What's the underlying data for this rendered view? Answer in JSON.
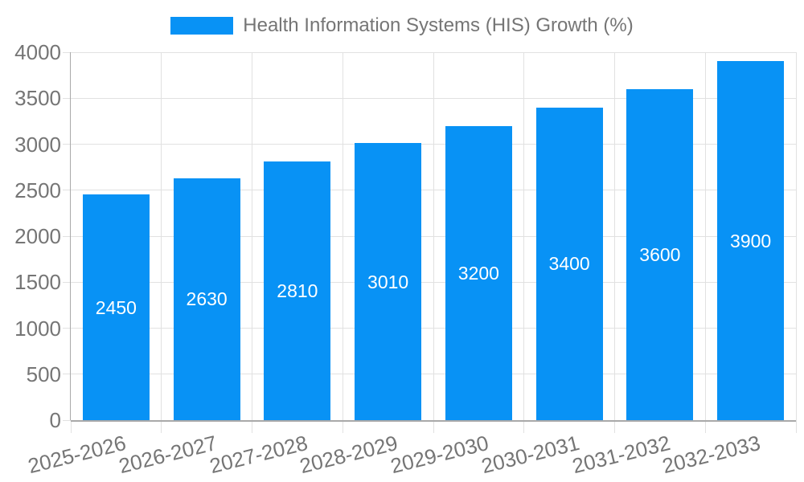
{
  "legend": {
    "label": "Health Information Systems (HIS) Growth (%)"
  },
  "chart_data": {
    "type": "bar",
    "title": "Health Information Systems (HIS) Growth (%)",
    "categories": [
      "2025-2026",
      "2026-2027",
      "2027-2028",
      "2028-2029",
      "2029-2030",
      "2030-2031",
      "2031-2032",
      "2032-2033"
    ],
    "values": [
      2450,
      2630,
      2810,
      3010,
      3200,
      3400,
      3600,
      3900
    ],
    "value_labels": [
      "2450",
      "2630",
      "2810",
      "3010",
      "3200",
      "3400",
      "3600",
      "3900"
    ],
    "xlabel": "",
    "ylabel": "",
    "ylim": [
      0,
      4000
    ],
    "y_ticks": [
      0,
      500,
      1000,
      1500,
      2000,
      2500,
      3000,
      3500,
      4000
    ],
    "y_tick_labels": [
      "0",
      "500",
      "1000",
      "1500",
      "2000",
      "2500",
      "3000",
      "3500",
      "4000"
    ],
    "grid": true,
    "legend_position": "top",
    "colors": {
      "bar": "#0892f5",
      "value_label": "#ffffff",
      "grid_line": "#e1e1e1",
      "axis_border": "#a9a9a9",
      "tick_label": "#757575",
      "legend_text": "#757575",
      "background": "#ffffff"
    }
  }
}
